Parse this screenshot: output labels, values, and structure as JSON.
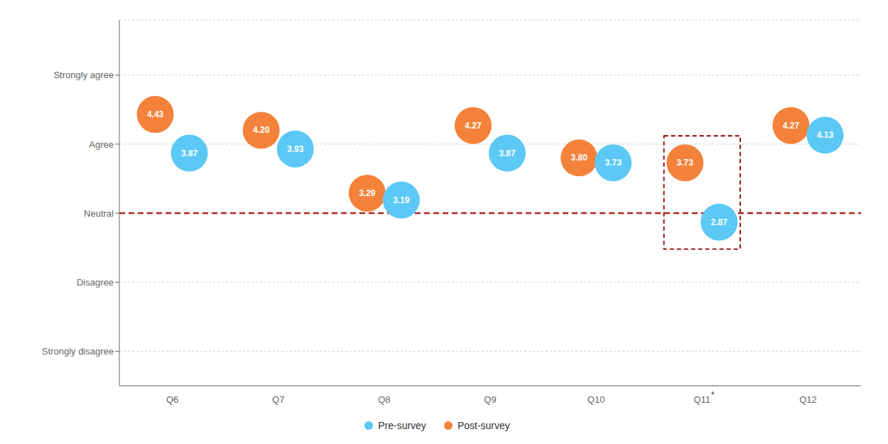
{
  "chart_data": {
    "type": "scatter",
    "categories": [
      "Q6",
      "Q7",
      "Q8",
      "Q9",
      "Q10",
      "Q11",
      "Q12"
    ],
    "series": [
      {
        "name": "Pre-survey",
        "color": "#5BC8F5",
        "values": [
          3.87,
          3.93,
          3.19,
          3.87,
          3.73,
          2.87,
          4.13
        ],
        "value_labels": [
          "3.87",
          "3.93",
          "3.19",
          "3.87",
          "3.73",
          "2.87",
          "4.13"
        ]
      },
      {
        "name": "Post-survey",
        "color": "#F5823A",
        "values": [
          4.43,
          4.2,
          3.29,
          4.27,
          3.8,
          3.73,
          4.27
        ],
        "value_labels": [
          "4.43",
          "4.20",
          "3.29",
          "4.27",
          "3.80",
          "3.73",
          "4.27"
        ]
      }
    ],
    "data_labels": true,
    "ylim": [
      0.5,
      5.8
    ],
    "yticks": [
      {
        "value": 5,
        "label": "Strongly agree"
      },
      {
        "value": 4,
        "label": "Agree"
      },
      {
        "value": 3,
        "label": "Neutral"
      },
      {
        "value": 2,
        "label": "Disagree"
      },
      {
        "value": 1,
        "label": "Strongly disagree"
      }
    ],
    "grid": true,
    "legend": "bottom",
    "reference_line": {
      "y": 3.0,
      "color": "#B22222"
    },
    "highlight": {
      "category": "Q11",
      "ylim": [
        2.48,
        4.12
      ],
      "color": "#8B0000"
    },
    "annotations": [
      {
        "text": "*",
        "category": "Q11"
      }
    ]
  }
}
